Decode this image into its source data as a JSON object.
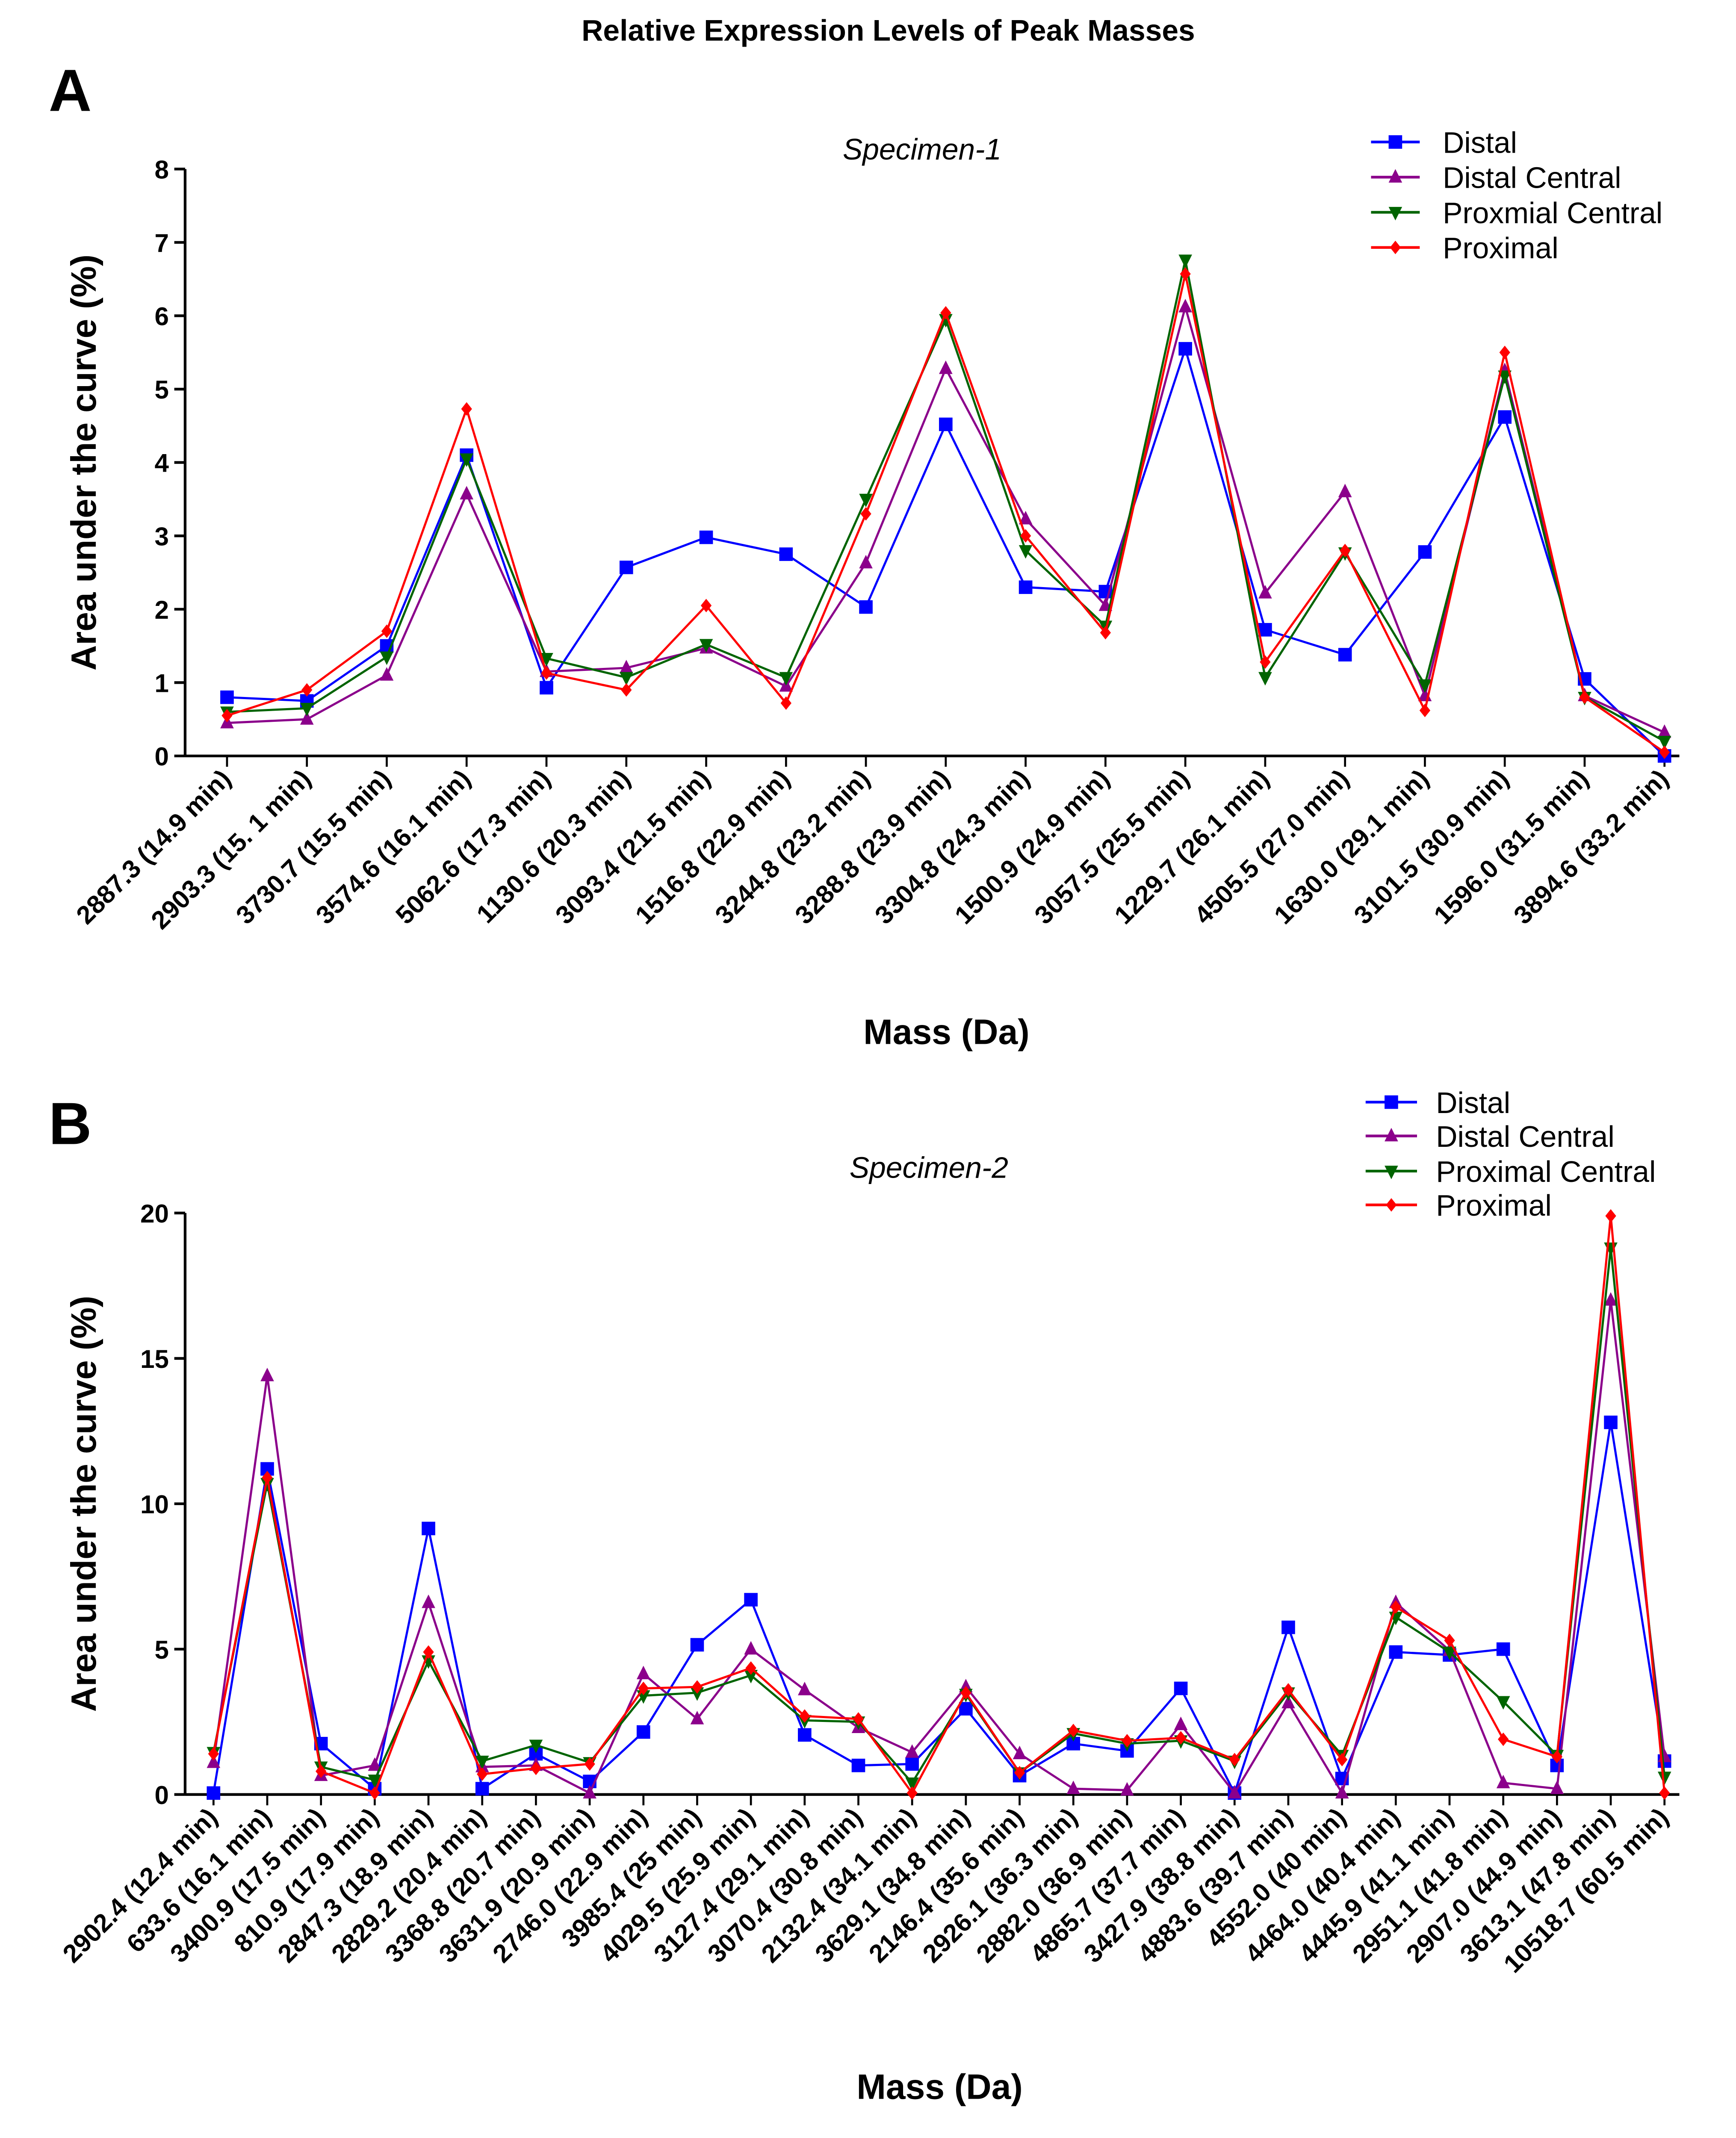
{
  "figure_title": "Relative Expression Levels of Peak Masses",
  "chart_data": [
    {
      "panel": "A",
      "type": "line",
      "title": "Specimen-1",
      "xlabel": "Mass (Da)",
      "ylabel": "Area under the curve (%)",
      "ylim": [
        0,
        8
      ],
      "yticks": [
        "0",
        "1",
        "2",
        "3",
        "4",
        "5",
        "6",
        "7",
        "8"
      ],
      "grid": false,
      "legend_position": "top-right",
      "categories": [
        "2887.3 (14.9 min)",
        "2903.3 (15. 1 min)",
        "3730.7 (15.5 min)",
        "3574.6 (16.1 min)",
        "5062.6 (17.3 min)",
        "1130.6 (20.3 min)",
        "3093.4 (21.5 min)",
        "1516.8 (22.9 min)",
        "3244.8 (23.2 min)",
        "3288.8 (23.9 min)",
        "3304.8 (24.3 min)",
        "1500.9 (24.9 min)",
        "3057.5 (25.5 min)",
        "1229.7 (26.1 min)",
        "4505.5 (27.0 min)",
        "1630.0 (29.1 min)",
        "3101.5 (30.9 min)",
        "1596.0 (31.5 min)",
        "3894.6 (33.2 min)"
      ],
      "series": [
        {
          "name": "Distal",
          "color": "#0000ff",
          "marker": "square",
          "values": [
            0.8,
            0.75,
            1.5,
            4.1,
            0.93,
            2.57,
            2.98,
            2.75,
            2.03,
            4.52,
            2.3,
            2.24,
            5.55,
            1.72,
            1.38,
            2.78,
            4.62,
            1.05,
            0.0
          ]
        },
        {
          "name": "Distal Central",
          "color": "#8b008b",
          "marker": "triangle-up",
          "values": [
            0.45,
            0.5,
            1.1,
            3.57,
            1.15,
            1.2,
            1.47,
            0.95,
            2.63,
            5.28,
            3.23,
            2.05,
            6.12,
            2.22,
            3.6,
            0.82,
            5.25,
            0.82,
            0.32
          ]
        },
        {
          "name": "Proxmial Central",
          "color": "#006400",
          "marker": "triangle-down",
          "values": [
            0.6,
            0.65,
            1.35,
            4.05,
            1.33,
            1.07,
            1.52,
            1.07,
            3.5,
            5.95,
            2.8,
            1.77,
            6.76,
            1.07,
            2.77,
            0.97,
            5.18,
            0.8,
            0.2
          ]
        },
        {
          "name": "Proximal",
          "color": "#ff0000",
          "marker": "diamond",
          "values": [
            0.55,
            0.9,
            1.7,
            4.73,
            1.13,
            0.9,
            2.05,
            0.72,
            3.3,
            6.04,
            3.0,
            1.68,
            6.57,
            1.28,
            2.8,
            0.62,
            5.5,
            0.8,
            0.05
          ]
        }
      ]
    },
    {
      "panel": "B",
      "type": "line",
      "title": "Specimen-2",
      "xlabel": "Mass (Da)",
      "ylabel": "Area under the curve (%)",
      "ylim": [
        0,
        20
      ],
      "yticks": [
        "0",
        "5",
        "10",
        "15",
        "20"
      ],
      "grid": false,
      "legend_position": "top-right",
      "categories": [
        "2902.4 (12.4 min)",
        "633.6 (16.1 min)",
        "3400.9 (17.5 min)",
        "810.9 (17.9 min)",
        "2847.3 (18.9 min)",
        "2829.2 (20.4 min)",
        "3368.8 (20.7 min)",
        "3631.9 (20.9 min)",
        "2746.0 (22.9 min)",
        "3985.4 (25 min)",
        "4029.5 (25.9 min)",
        "3127.4 (29.1 min)",
        "3070.4 (30.8 min)",
        "2132.4 (34.1 min)",
        "3629.1 (34.8 min)",
        "2146.4 (35.6 min)",
        "2926.1 (36.3 min)",
        "2882.0 (36.9 min)",
        "4865.7 (37.7 min)",
        "3427.9 (38.8 min)",
        "4883.6 (39.7 min)",
        "4552.0 (40 min)",
        "4464.0 (40.4 min)",
        "4445.9 (41.1 min)",
        "2951.1 (41.8 min)",
        "2907.0 (44.9 min)",
        "3613.1 (47.8 min)",
        "10518.7 (60.5 min)"
      ],
      "series": [
        {
          "name": "Distal",
          "color": "#0000ff",
          "marker": "square",
          "values": [
            0.05,
            11.2,
            1.75,
            0.2,
            9.15,
            0.2,
            1.4,
            0.45,
            2.15,
            5.15,
            6.7,
            2.05,
            1.0,
            1.05,
            2.95,
            0.65,
            1.75,
            1.5,
            3.65,
            0.05,
            5.75,
            0.55,
            4.9,
            4.8,
            5.0,
            1.0,
            12.8,
            1.15
          ]
        },
        {
          "name": "Distal Central",
          "color": "#8b008b",
          "marker": "triangle-up",
          "values": [
            1.1,
            14.4,
            0.65,
            1.0,
            6.6,
            0.95,
            1.0,
            0.05,
            4.15,
            2.6,
            5.0,
            3.6,
            2.3,
            1.45,
            3.7,
            1.4,
            0.2,
            0.15,
            2.4,
            0.05,
            3.15,
            0.05,
            6.6,
            4.95,
            0.4,
            0.2,
            17.0,
            1.3
          ]
        },
        {
          "name": "Proximal Central",
          "color": "#006400",
          "marker": "triangle-down",
          "values": [
            1.45,
            10.7,
            0.95,
            0.5,
            4.6,
            1.15,
            1.7,
            1.1,
            3.4,
            3.5,
            4.1,
            2.55,
            2.5,
            0.4,
            3.45,
            0.75,
            2.1,
            1.75,
            1.85,
            1.15,
            3.5,
            1.35,
            6.1,
            4.9,
            3.2,
            1.35,
            18.8,
            0.6
          ]
        },
        {
          "name": "Proximal",
          "color": "#ff0000",
          "marker": "diamond",
          "values": [
            1.4,
            10.9,
            0.8,
            0.05,
            4.9,
            0.7,
            0.9,
            1.05,
            3.65,
            3.7,
            4.35,
            2.7,
            2.6,
            0.05,
            3.5,
            0.75,
            2.2,
            1.85,
            1.95,
            1.2,
            3.6,
            1.2,
            6.45,
            5.3,
            1.9,
            1.3,
            19.9,
            0.05
          ]
        }
      ]
    }
  ]
}
